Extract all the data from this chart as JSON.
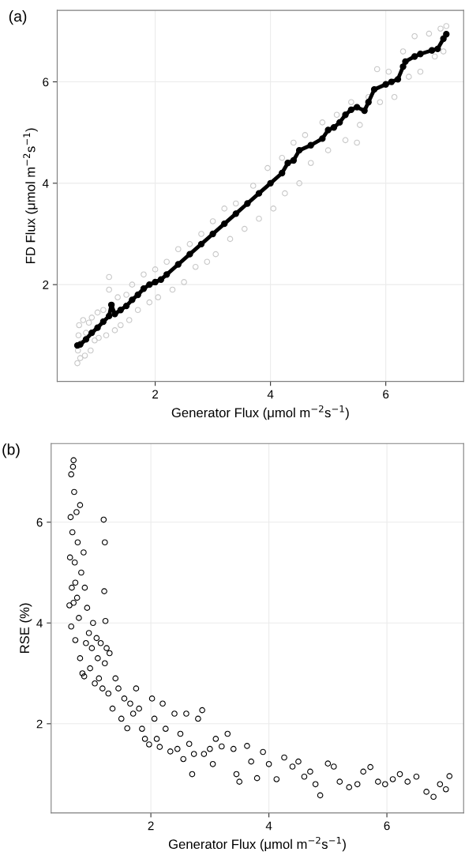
{
  "chart_data": [
    {
      "type": "scatter",
      "annotations": [
        "(a)"
      ],
      "xlabel": "Generator Flux (μmol m$^{−2}$s$^{−1}$)",
      "ylabel": "FD Flux (μmol m$^{−2}$s$^{−1}$)",
      "xlim": [
        0.3,
        7.35
      ],
      "ylim": [
        0.09,
        7.41
      ],
      "xticks": [
        2,
        4,
        6
      ],
      "yticks": [
        2,
        4,
        6
      ],
      "grid": true,
      "marker": "circle",
      "series": [
        {
          "color": "#c8c8c8",
          "x": [
            0.65,
            0.66,
            0.67,
            0.68,
            0.7,
            0.72,
            0.75,
            0.78,
            0.8,
            0.85,
            0.88,
            0.9,
            0.95,
            1.0,
            1.02,
            1.1,
            1.15,
            1.2,
            1.2,
            1.25,
            1.3,
            1.35,
            1.4,
            1.5,
            1.55,
            1.6,
            1.7,
            1.8,
            1.9,
            2.0,
            2.05,
            2.2,
            2.3,
            2.4,
            2.5,
            2.6,
            2.7,
            2.8,
            2.9,
            3.0,
            3.05,
            3.2,
            3.3,
            3.4,
            3.55,
            3.7,
            3.8,
            3.95,
            4.05,
            4.2,
            4.25,
            4.4,
            4.5,
            4.6,
            4.7,
            4.9,
            5.0,
            5.15,
            5.3,
            5.4,
            5.5,
            5.55,
            5.7,
            5.85,
            5.9,
            6.05,
            6.15,
            6.3,
            6.4,
            6.5,
            6.6,
            6.75,
            6.85,
            6.95,
            7.0,
            7.05
          ],
          "values": [
            0.45,
            0.7,
            1.0,
            1.2,
            0.55,
            0.85,
            1.3,
            0.6,
            1.05,
            1.25,
            0.7,
            1.35,
            0.9,
            1.45,
            0.95,
            1.5,
            1.0,
            2.15,
            1.9,
            1.6,
            1.1,
            1.75,
            1.2,
            1.8,
            1.3,
            2.0,
            1.5,
            2.2,
            1.65,
            2.3,
            1.75,
            2.45,
            1.9,
            2.7,
            2.05,
            2.8,
            2.35,
            3.0,
            2.45,
            3.25,
            2.6,
            3.5,
            2.9,
            3.6,
            3.1,
            3.95,
            3.3,
            4.3,
            3.5,
            4.5,
            3.8,
            4.8,
            4.0,
            4.95,
            4.4,
            5.2,
            4.65,
            5.35,
            4.85,
            5.6,
            4.8,
            5.15,
            5.7,
            6.25,
            5.6,
            6.2,
            5.7,
            6.6,
            6.1,
            6.9,
            6.2,
            6.95,
            6.5,
            7.05,
            6.6,
            7.1
          ]
        },
        {
          "type": "line",
          "color": "#000000",
          "x": [
            0.65,
            0.7,
            0.8,
            0.9,
            1.0,
            1.1,
            1.2,
            1.24,
            1.3,
            1.4,
            1.5,
            1.6,
            1.7,
            1.8,
            1.9,
            2.0,
            2.1,
            2.2,
            2.4,
            2.6,
            2.8,
            3.0,
            3.2,
            3.4,
            3.6,
            3.8,
            4.0,
            4.2,
            4.3,
            4.4,
            4.5,
            4.7,
            4.9,
            5.0,
            5.1,
            5.2,
            5.3,
            5.4,
            5.5,
            5.63,
            5.7,
            5.8,
            6.0,
            6.1,
            6.21,
            6.3,
            6.34,
            6.5,
            6.6,
            6.8,
            6.9,
            7.0,
            7.05
          ],
          "values": [
            0.8,
            0.82,
            0.92,
            1.05,
            1.15,
            1.27,
            1.38,
            1.6,
            1.42,
            1.5,
            1.58,
            1.7,
            1.8,
            1.92,
            2.0,
            2.05,
            2.1,
            2.2,
            2.4,
            2.6,
            2.8,
            3.0,
            3.2,
            3.4,
            3.6,
            3.8,
            4.0,
            4.2,
            4.4,
            4.45,
            4.65,
            4.75,
            4.88,
            5.05,
            5.1,
            5.2,
            5.35,
            5.45,
            5.5,
            5.43,
            5.6,
            5.85,
            5.95,
            6.0,
            6.05,
            6.3,
            6.4,
            6.5,
            6.55,
            6.62,
            6.65,
            6.85,
            6.94
          ]
        }
      ]
    },
    {
      "type": "scatter",
      "annotations": [
        "(b)"
      ],
      "xlabel": "Generator Flux (μmol m$^{−2}$s$^{−1}$)",
      "ylabel": "RSE (%)",
      "xlim": [
        0.31,
        7.3
      ],
      "ylim": [
        0.23,
        7.56
      ],
      "xticks": [
        2,
        4,
        6
      ],
      "yticks": [
        2,
        4,
        6
      ],
      "grid": true,
      "marker": "circle",
      "series": [
        {
          "color": "#000000",
          "x": [
            0.62,
            0.63,
            0.64,
            0.65,
            0.65,
            0.66,
            0.67,
            0.68,
            0.69,
            0.69,
            0.7,
            0.71,
            0.72,
            0.72,
            0.74,
            0.75,
            0.76,
            0.78,
            0.8,
            0.8,
            0.82,
            0.84,
            0.86,
            0.87,
            0.88,
            0.9,
            0.92,
            0.95,
            0.97,
            1.0,
            1.02,
            1.05,
            1.08,
            1.1,
            1.12,
            1.15,
            1.18,
            1.2,
            1.21,
            1.22,
            1.22,
            1.23,
            1.25,
            1.28,
            1.3,
            1.35,
            1.4,
            1.45,
            1.5,
            1.55,
            1.6,
            1.65,
            1.7,
            1.75,
            1.8,
            1.85,
            1.9,
            1.97,
            2.02,
            2.06,
            2.1,
            2.15,
            2.2,
            2.25,
            2.33,
            2.4,
            2.45,
            2.5,
            2.55,
            2.6,
            2.65,
            2.7,
            2.73,
            2.8,
            2.87,
            2.9,
            3.0,
            3.05,
            3.1,
            3.2,
            3.3,
            3.4,
            3.45,
            3.5,
            3.63,
            3.7,
            3.8,
            3.9,
            4.0,
            4.13,
            4.26,
            4.4,
            4.5,
            4.6,
            4.7,
            4.79,
            4.87,
            5.0,
            5.1,
            5.2,
            5.36,
            5.5,
            5.6,
            5.72,
            5.85,
            5.97,
            6.1,
            6.22,
            6.35,
            6.5,
            6.67,
            6.79,
            6.9,
            7.0,
            7.06
          ],
          "values": [
            4.35,
            5.3,
            6.1,
            3.93,
            6.95,
            4.7,
            5.8,
            7.1,
            7.23,
            4.4,
            6.6,
            5.2,
            3.66,
            4.8,
            6.2,
            4.5,
            5.6,
            4.1,
            6.34,
            3.3,
            5.0,
            3.0,
            5.4,
            2.94,
            4.7,
            3.6,
            4.3,
            3.8,
            3.1,
            3.5,
            4.0,
            2.8,
            3.7,
            3.3,
            2.9,
            3.6,
            2.7,
            6.05,
            4.63,
            5.6,
            3.2,
            4.04,
            3.5,
            2.6,
            3.4,
            2.3,
            2.9,
            2.7,
            2.1,
            2.5,
            1.91,
            2.4,
            2.2,
            2.7,
            2.3,
            1.9,
            1.7,
            1.59,
            2.5,
            2.1,
            1.7,
            1.54,
            2.4,
            1.9,
            1.45,
            2.2,
            1.5,
            1.8,
            1.3,
            2.2,
            1.6,
            1.0,
            1.4,
            2.1,
            2.27,
            1.4,
            1.5,
            1.2,
            1.7,
            1.55,
            1.8,
            1.5,
            1.0,
            0.85,
            1.56,
            1.25,
            0.92,
            1.44,
            1.2,
            0.9,
            1.33,
            1.15,
            1.25,
            0.95,
            1.05,
            0.8,
            0.58,
            1.21,
            1.15,
            0.85,
            0.74,
            0.8,
            1.05,
            1.14,
            0.85,
            0.8,
            0.9,
            1.0,
            0.85,
            0.95,
            0.65,
            0.55,
            0.8,
            0.7,
            0.96
          ]
        }
      ]
    }
  ]
}
